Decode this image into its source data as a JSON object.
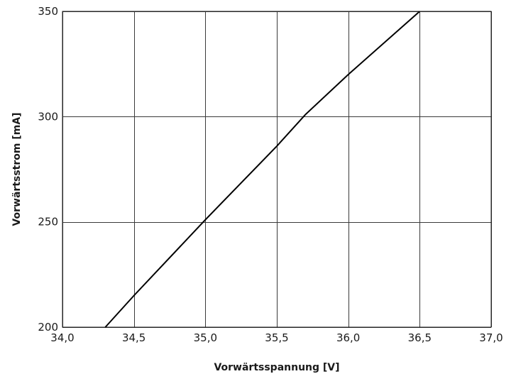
{
  "chart_data": {
    "type": "line",
    "title": "",
    "xlabel": "Vorwärtsspannung [V]",
    "ylabel": "Vorwärtsstrom [mA]",
    "xlim": [
      34.0,
      37.0
    ],
    "ylim": [
      200,
      350
    ],
    "x_ticks": [
      34.0,
      34.5,
      35.0,
      35.5,
      36.0,
      36.5,
      37.0
    ],
    "x_tick_labels": [
      "34,0",
      "34,5",
      "35,0",
      "35,5",
      "36,0",
      "36,5",
      "37,0"
    ],
    "y_ticks": [
      200,
      250,
      300,
      350
    ],
    "y_tick_labels": [
      "200",
      "250",
      "300",
      "350"
    ],
    "grid": true,
    "legend": "none",
    "series": [
      {
        "color": "#000000",
        "x": [
          34.3,
          34.5,
          35.0,
          35.5,
          35.7,
          36.0,
          36.5
        ],
        "y": [
          200,
          215,
          251,
          286,
          301,
          320,
          350
        ]
      }
    ]
  }
}
